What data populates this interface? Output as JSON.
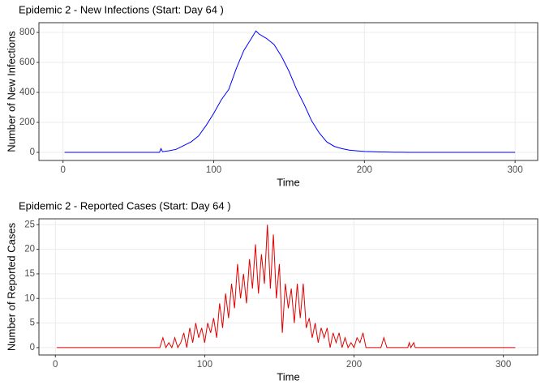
{
  "chart_data": [
    {
      "type": "line",
      "title": "Epidemic 2 - New Infections (Start: Day 64 )",
      "x_label": "Time",
      "y_label": "Number of New Infections",
      "xlim": [
        -16,
        315
      ],
      "ylim": [
        -54,
        865
      ],
      "xticks": [
        0,
        100,
        200,
        300
      ],
      "yticks": [
        0,
        200,
        400,
        600,
        800
      ],
      "grid": true,
      "series": [
        {
          "color": "#0000ff",
          "x": [
            1,
            60,
            64,
            65,
            66,
            70,
            75,
            80,
            85,
            90,
            95,
            100,
            105,
            110,
            115,
            120,
            125,
            128,
            130,
            135,
            140,
            145,
            150,
            155,
            160,
            165,
            170,
            175,
            180,
            185,
            190,
            195,
            200,
            205,
            210,
            215,
            220,
            225,
            230,
            300
          ],
          "values": [
            0,
            0,
            0,
            25,
            5,
            10,
            20,
            45,
            70,
            110,
            180,
            260,
            350,
            420,
            560,
            680,
            760,
            810,
            790,
            760,
            720,
            640,
            540,
            420,
            320,
            210,
            130,
            70,
            40,
            25,
            15,
            10,
            6,
            5,
            3,
            2,
            1,
            1,
            0,
            0
          ]
        }
      ]
    },
    {
      "type": "line",
      "title": "Epidemic 2 - Reported Cases (Start: Day 64 )",
      "x_label": "Time",
      "y_label": "Number of Reported Cases",
      "xlim": [
        -11,
        323
      ],
      "ylim": [
        -1.5,
        26.2
      ],
      "xticks": [
        0,
        100,
        200,
        300
      ],
      "yticks": [
        0,
        5,
        10,
        15,
        20,
        25
      ],
      "grid": true,
      "series": [
        {
          "color": "#e00000",
          "x": [
            1,
            70,
            72,
            74,
            76,
            78,
            80,
            82,
            84,
            86,
            88,
            90,
            92,
            94,
            96,
            98,
            100,
            102,
            104,
            106,
            108,
            110,
            112,
            114,
            116,
            118,
            120,
            122,
            124,
            126,
            128,
            130,
            132,
            134,
            136,
            138,
            140,
            142,
            144,
            146,
            148,
            150,
            152,
            154,
            156,
            158,
            160,
            162,
            164,
            166,
            168,
            170,
            172,
            174,
            176,
            178,
            180,
            182,
            184,
            186,
            188,
            190,
            192,
            194,
            196,
            198,
            200,
            202,
            204,
            206,
            208,
            210,
            218,
            220,
            222,
            236,
            237,
            238,
            240,
            241,
            308
          ],
          "values": [
            0,
            0,
            2,
            0,
            1,
            0,
            2,
            0,
            1,
            3,
            0,
            4,
            1,
            5,
            2,
            4,
            1,
            5,
            3,
            6,
            2,
            9,
            4,
            11,
            6,
            13,
            8,
            17,
            10,
            15,
            9,
            18,
            12,
            21,
            11,
            19,
            13,
            25,
            12,
            23,
            10,
            17,
            3,
            13,
            8,
            12,
            5,
            13,
            6,
            13,
            4,
            6,
            2,
            5,
            1,
            4,
            2,
            4,
            0,
            3,
            1,
            3,
            0,
            2,
            0,
            1,
            0,
            2,
            1,
            3,
            0,
            0,
            0,
            2,
            0,
            0,
            1,
            0,
            1,
            0,
            0
          ]
        }
      ]
    }
  ]
}
